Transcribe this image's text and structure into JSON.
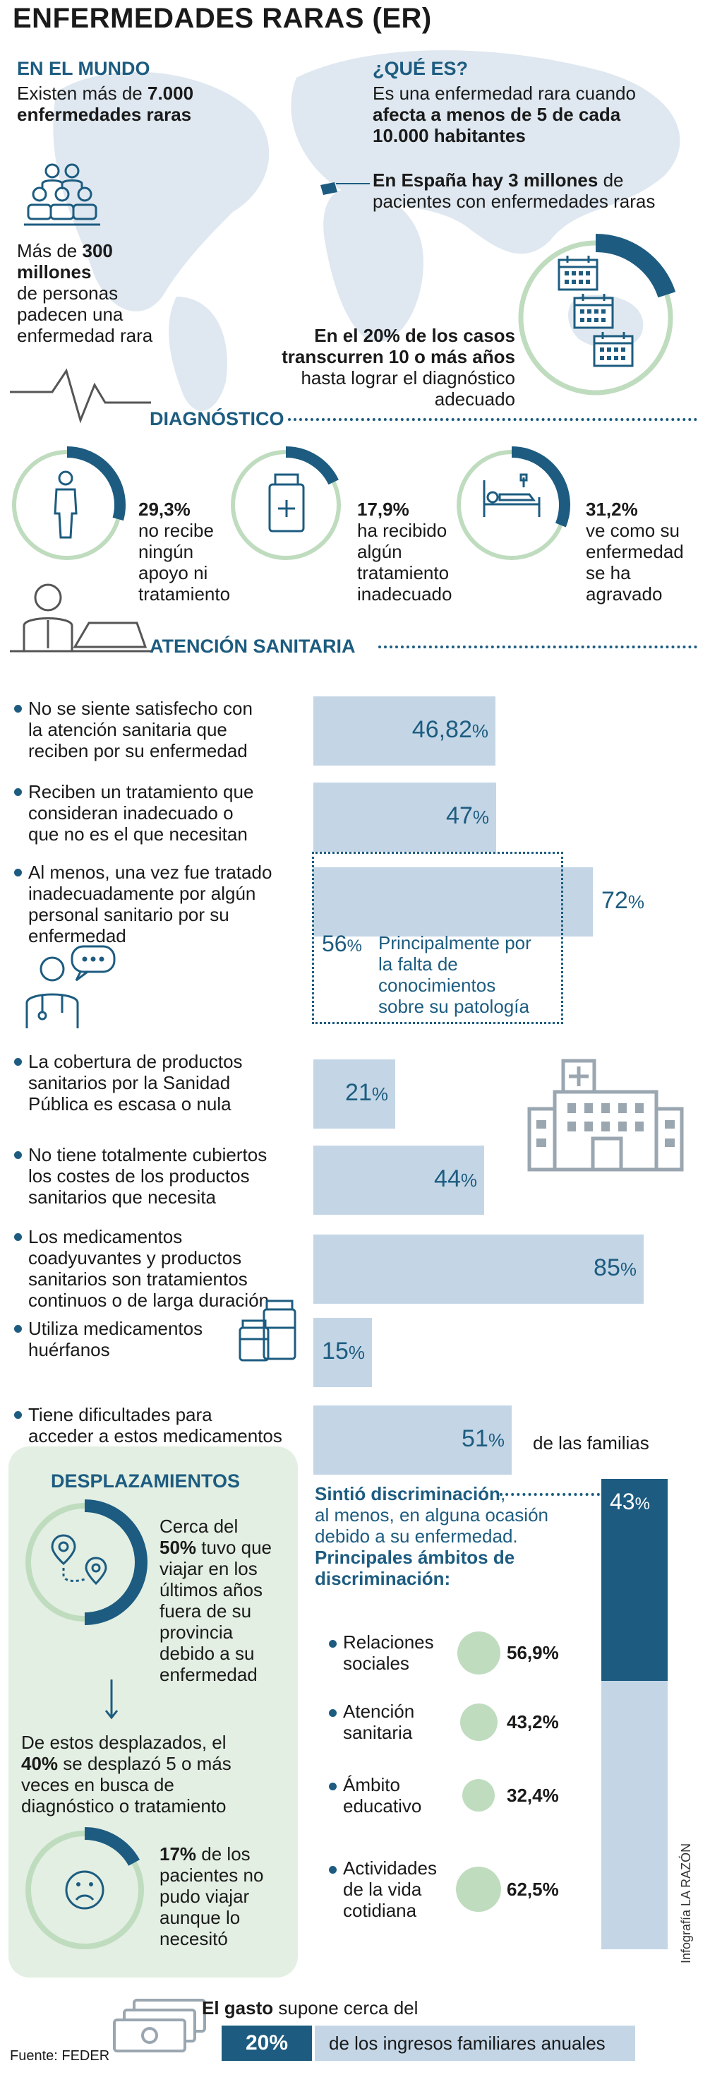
{
  "title": "ENFERMEDADES RARAS (ER)",
  "world": {
    "heading": "EN EL MUNDO",
    "line1": "Existen más de",
    "line1_bold": "7.000",
    "line2_bold": "enfermedades raras",
    "people_pre": "Más de",
    "people_bold1": "300",
    "people_bold2": "millones",
    "people_rest": [
      "de personas",
      "padecen una",
      "enfermedad rara"
    ]
  },
  "what": {
    "heading": "¿QUÉ ES?",
    "line1": "Es una enfermedad rara cuando",
    "line2_bold": "afecta a menos de 5 de cada",
    "line3_bold": "10.000 habitantes",
    "spain_bold": "En España hay 3 millones",
    "spain_rest1": "de",
    "spain_rest2": "pacientes con enfermedades raras"
  },
  "delay": {
    "line1_bold": "En el 20% de los casos",
    "line2_bold": "transcurren 10 o más años",
    "line3": "hasta lograr el diagnóstico",
    "line4": "adecuado",
    "fraction": 0.2
  },
  "diagnosis": {
    "heading": "DIAGNÓSTICO",
    "items": [
      {
        "value": "29,3%",
        "fraction": 0.293,
        "text": [
          "no recibe",
          "ningún",
          "apoyo ni",
          "tratamiento"
        ],
        "icon": "person-icon"
      },
      {
        "value": "17,9%",
        "fraction": 0.179,
        "text": [
          "ha recibido",
          "algún",
          "tratamiento",
          "inadecuado"
        ],
        "icon": "medicine-bottle-icon"
      },
      {
        "value": "31,2%",
        "fraction": 0.312,
        "text": [
          "ve como su",
          "enfermedad",
          "se ha",
          "agravado"
        ],
        "icon": "hospital-bed-icon"
      }
    ]
  },
  "care": {
    "heading": "ATENCIÓN SANITARIA",
    "rows": [
      {
        "text": [
          "No se siente satisfecho con",
          "la atención sanitaria que",
          "reciben por su enfermedad"
        ],
        "num": "46,82",
        "unit": "%",
        "fraction": 0.4682
      },
      {
        "text": [
          "Reciben un tratamiento que",
          "consideran inadecuado o",
          "que no es el que necesitan"
        ],
        "num": "47",
        "unit": "%",
        "fraction": 0.47
      },
      {
        "text": [
          "Al menos, una vez fue tratado",
          "inadecuadamente por algún",
          "personal sanitario por su",
          "enfermedad"
        ],
        "num": "72",
        "unit": "%",
        "fraction": 0.72
      },
      {
        "text": [
          "La cobertura de productos",
          "sanitarios por la Sanidad",
          "Pública es escasa o nula"
        ],
        "num": "21",
        "unit": "%",
        "fraction": 0.21
      },
      {
        "text": [
          "No tiene totalmente cubiertos",
          "los costes de los productos",
          "sanitarios que necesita"
        ],
        "num": "44",
        "unit": "%",
        "fraction": 0.44
      },
      {
        "text": [
          "Los medicamentos",
          "coadyuvantes y productos",
          "sanitarios son tratamientos",
          "continuos o de larga duración"
        ],
        "num": "85",
        "unit": "%",
        "fraction": 0.85
      },
      {
        "text": [
          "Utiliza medicamentos",
          "huérfanos"
        ],
        "num": "15",
        "unit": "%",
        "fraction": 0.15
      },
      {
        "text": [
          "Tiene dificultades para",
          "acceder a estos medicamentos"
        ],
        "num": "51",
        "unit": "%",
        "fraction": 0.51,
        "suffix": "de las familias"
      }
    ],
    "sub": {
      "num": "56",
      "unit": "%",
      "text": [
        "Principalmente por",
        "la falta de",
        "conocimientos",
        "sobre su patología"
      ]
    }
  },
  "travel": {
    "heading": "DESPLAZAMIENTOS",
    "item1": {
      "fraction": 0.5,
      "lines": [
        "Cerca del",
        "50% tuvo que",
        "viajar en los",
        "últimos años",
        "fuera de su",
        "provincia",
        "debido a su",
        "enfermedad"
      ],
      "bold": "50%"
    },
    "mid": [
      "De estos desplazados, el",
      "40% se desplazó 5 o más",
      "veces en busca de",
      "diagnóstico o tratamiento"
    ],
    "item2": {
      "fraction": 0.17,
      "lines": [
        "17% de los",
        "pacientes no",
        "pudo viajar",
        "aunque lo",
        "necesitó"
      ],
      "bold": "17%"
    }
  },
  "discrimination": {
    "line1_bold": "Sintió discriminación",
    "line1_rest": ",",
    "lines": [
      "al menos, en alguna ocasión",
      "debido a su enfermedad."
    ],
    "sub_bold": [
      "Principales ámbitos de",
      "discriminación:"
    ],
    "value": "43",
    "unit": "%",
    "fraction": 0.43,
    "items": [
      {
        "label": [
          "Relaciones",
          "sociales"
        ],
        "value": "56,9%",
        "fraction": 0.569
      },
      {
        "label": [
          "Atención",
          "sanitaria"
        ],
        "value": "43,2%",
        "fraction": 0.432
      },
      {
        "label": [
          "Ámbito",
          "educativo"
        ],
        "value": "32,4%",
        "fraction": 0.324
      },
      {
        "label": [
          "Actividades",
          "de la vida",
          "cotidiana"
        ],
        "value": "62,5%",
        "fraction": 0.625
      }
    ]
  },
  "expense": {
    "bold": "El gasto",
    "rest": "supone cerca del",
    "value": "20%",
    "text": "de los ingresos familiares anuales"
  },
  "source": "Fuente: FEDER",
  "credit": "Infografía LA RAZÓN",
  "colors": {
    "dark_blue": "#1d5c80",
    "light_blue": "#c4d6e6",
    "green": "#bfdcbf",
    "light_green_bg": "#e3efe3",
    "map": "#dfe8f0"
  }
}
